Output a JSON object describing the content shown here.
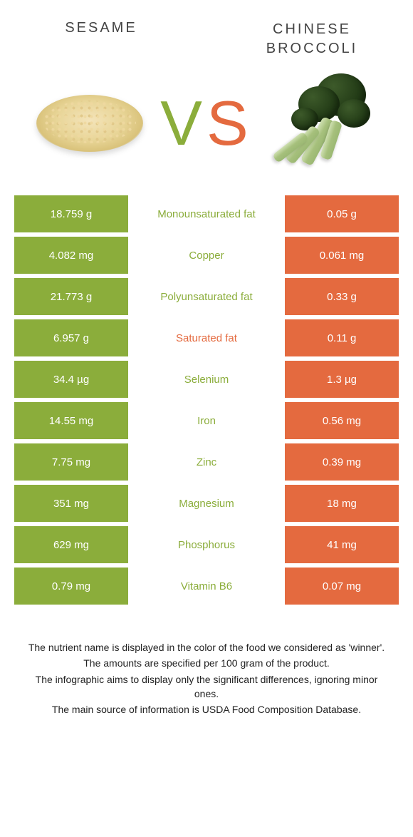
{
  "colors": {
    "left": "#8bad3b",
    "right": "#e46a3f",
    "rowGap": "#ffffff",
    "text": "#222222"
  },
  "titles": {
    "left": "Sesame",
    "right": "Chinese broccoli"
  },
  "vs": {
    "v": "V",
    "s": "S"
  },
  "rows": [
    {
      "left": "18.759 g",
      "label": "Monounsaturated fat",
      "right": "0.05 g",
      "winner": "left"
    },
    {
      "left": "4.082 mg",
      "label": "Copper",
      "right": "0.061 mg",
      "winner": "left"
    },
    {
      "left": "21.773 g",
      "label": "Polyunsaturated fat",
      "right": "0.33 g",
      "winner": "left"
    },
    {
      "left": "6.957 g",
      "label": "Saturated fat",
      "right": "0.11 g",
      "winner": "right"
    },
    {
      "left": "34.4 µg",
      "label": "Selenium",
      "right": "1.3 µg",
      "winner": "left"
    },
    {
      "left": "14.55 mg",
      "label": "Iron",
      "right": "0.56 mg",
      "winner": "left"
    },
    {
      "left": "7.75 mg",
      "label": "Zinc",
      "right": "0.39 mg",
      "winner": "left"
    },
    {
      "left": "351 mg",
      "label": "Magnesium",
      "right": "18 mg",
      "winner": "left"
    },
    {
      "left": "629 mg",
      "label": "Phosphorus",
      "right": "41 mg",
      "winner": "left"
    },
    {
      "left": "0.79 mg",
      "label": "Vitamin B6",
      "right": "0.07 mg",
      "winner": "left"
    }
  ],
  "footer": [
    "The nutrient name is displayed in the color of the food we considered as 'winner'.",
    "The amounts are specified per 100 gram of the product.",
    "The infographic aims to display only the significant differences, ignoring minor ones.",
    "The main source of information is USDA Food Composition Database."
  ]
}
